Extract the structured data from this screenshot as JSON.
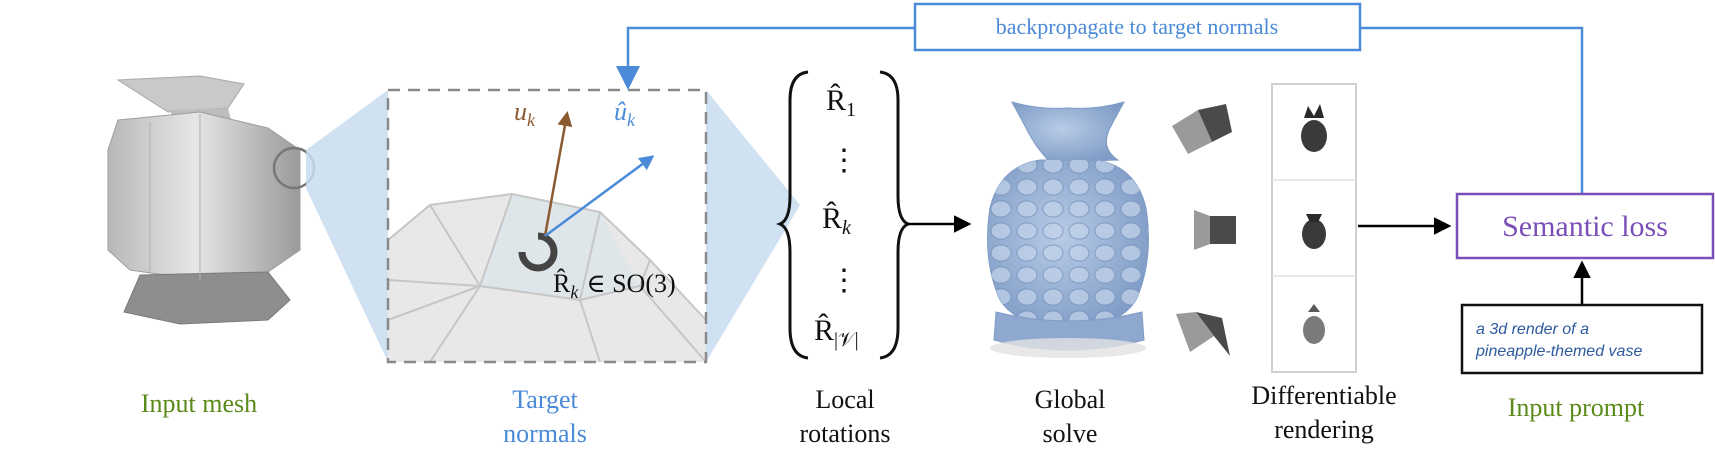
{
  "colors": {
    "blue": "#4a8ad8",
    "green": "#5a8a1a",
    "purple": "#7a4fb8",
    "brown": "#8a5a30",
    "zoom": "#c8dcf0",
    "vase_blue": "#9ab2d6",
    "mesh_gray": "#d0d0d0"
  },
  "labels": {
    "input_mesh": "Input mesh",
    "target_normals_1": "Target",
    "target_normals_2": "normals",
    "local_rotations_1": "Local",
    "local_rotations_2": "rotations",
    "global_solve_1": "Global",
    "global_solve_2": "solve",
    "diff_rendering_1": "Differentiable",
    "diff_rendering_2": "rendering",
    "input_prompt": "Input prompt",
    "backprop": "backpropagate to target normals",
    "semantic_loss": "Semantic loss",
    "prompt_line_1": "a 3d render of a",
    "prompt_line_2": "pineapple-themed vase"
  },
  "math": {
    "u_k": "u",
    "u_k_sub": "k",
    "uhat_k": "û",
    "uhat_k_sub": "k",
    "rk_in_so3": "∈ SO(3)",
    "r_sym": "R̂",
    "r1_sub": "1",
    "rk_sub": "k",
    "rv_sub": "|𝒱|",
    "dots": "⋮"
  }
}
